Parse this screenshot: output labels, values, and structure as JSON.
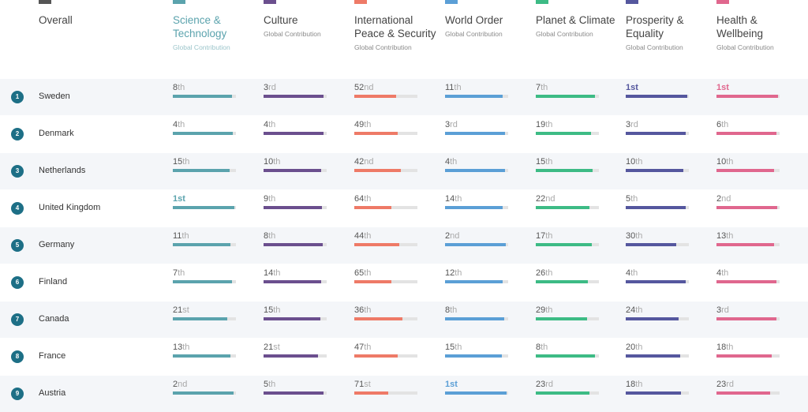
{
  "header": {
    "overall_label": "Overall",
    "overall_color": "#555555",
    "columns": [
      {
        "title_lines": [
          "Science &",
          "Technology"
        ],
        "subtitle": "Global Contribution",
        "color": "#5ba3ad",
        "title_color": "#5ba3ad"
      },
      {
        "title_lines": [
          "Culture"
        ],
        "subtitle": "Global Contribution",
        "color": "#6b4f8e"
      },
      {
        "title_lines": [
          "International",
          "Peace & Security"
        ],
        "subtitle": "Global Contribution",
        "color": "#ee7a67"
      },
      {
        "title_lines": [
          "World Order"
        ],
        "subtitle": "Global Contribution",
        "color": "#5b9fd6"
      },
      {
        "title_lines": [
          "Planet & Climate"
        ],
        "subtitle": "Global Contribution",
        "color": "#3dbb85"
      },
      {
        "title_lines": [
          "Prosperity &",
          "Equality"
        ],
        "subtitle": "Global Contribution",
        "color": "#55579e"
      },
      {
        "title_lines": [
          "Health &",
          "Wellbeing"
        ],
        "subtitle": "Global Contribution",
        "color": "#e0678e"
      }
    ]
  },
  "rows": [
    {
      "rank": "1",
      "country": "Sweden",
      "cells": [
        {
          "n": "8",
          "s": "th",
          "f": 0.96
        },
        {
          "n": "3",
          "s": "rd",
          "f": 0.98
        },
        {
          "n": "52",
          "s": "nd",
          "f": 0.68
        },
        {
          "n": "11",
          "s": "th",
          "f": 0.94
        },
        {
          "n": "7",
          "s": "th",
          "f": 0.96
        },
        {
          "n": "1",
          "s": "st",
          "f": 1.0,
          "first": true
        },
        {
          "n": "1",
          "s": "st",
          "f": 1.0,
          "first": true
        }
      ]
    },
    {
      "rank": "2",
      "country": "Denmark",
      "cells": [
        {
          "n": "4",
          "s": "th",
          "f": 0.98
        },
        {
          "n": "4",
          "s": "th",
          "f": 0.98
        },
        {
          "n": "49",
          "s": "th",
          "f": 0.7
        },
        {
          "n": "3",
          "s": "rd",
          "f": 0.98
        },
        {
          "n": "19",
          "s": "th",
          "f": 0.9
        },
        {
          "n": "3",
          "s": "rd",
          "f": 0.98
        },
        {
          "n": "6",
          "s": "th",
          "f": 0.97
        }
      ]
    },
    {
      "rank": "3",
      "country": "Netherlands",
      "cells": [
        {
          "n": "15",
          "s": "th",
          "f": 0.92
        },
        {
          "n": "10",
          "s": "th",
          "f": 0.94
        },
        {
          "n": "42",
          "s": "nd",
          "f": 0.75
        },
        {
          "n": "4",
          "s": "th",
          "f": 0.98
        },
        {
          "n": "15",
          "s": "th",
          "f": 0.92
        },
        {
          "n": "10",
          "s": "th",
          "f": 0.94
        },
        {
          "n": "10",
          "s": "th",
          "f": 0.94
        }
      ]
    },
    {
      "rank": "4",
      "country": "United Kingdom",
      "cells": [
        {
          "n": "1",
          "s": "st",
          "f": 1.0,
          "first": true
        },
        {
          "n": "9",
          "s": "th",
          "f": 0.95
        },
        {
          "n": "64",
          "s": "th",
          "f": 0.6
        },
        {
          "n": "14",
          "s": "th",
          "f": 0.93
        },
        {
          "n": "22",
          "s": "nd",
          "f": 0.87
        },
        {
          "n": "5",
          "s": "th",
          "f": 0.97
        },
        {
          "n": "2",
          "s": "nd",
          "f": 0.99
        }
      ]
    },
    {
      "rank": "5",
      "country": "Germany",
      "cells": [
        {
          "n": "11",
          "s": "th",
          "f": 0.94
        },
        {
          "n": "8",
          "s": "th",
          "f": 0.96
        },
        {
          "n": "44",
          "s": "th",
          "f": 0.73
        },
        {
          "n": "2",
          "s": "nd",
          "f": 0.99
        },
        {
          "n": "17",
          "s": "th",
          "f": 0.91
        },
        {
          "n": "30",
          "s": "th",
          "f": 0.82
        },
        {
          "n": "13",
          "s": "th",
          "f": 0.93
        }
      ]
    },
    {
      "rank": "6",
      "country": "Finland",
      "cells": [
        {
          "n": "7",
          "s": "th",
          "f": 0.96
        },
        {
          "n": "14",
          "s": "th",
          "f": 0.93
        },
        {
          "n": "65",
          "s": "th",
          "f": 0.6
        },
        {
          "n": "12",
          "s": "th",
          "f": 0.94
        },
        {
          "n": "26",
          "s": "th",
          "f": 0.85
        },
        {
          "n": "4",
          "s": "th",
          "f": 0.98
        },
        {
          "n": "4",
          "s": "th",
          "f": 0.98
        }
      ]
    },
    {
      "rank": "7",
      "country": "Canada",
      "cells": [
        {
          "n": "21",
          "s": "st",
          "f": 0.88
        },
        {
          "n": "15",
          "s": "th",
          "f": 0.92
        },
        {
          "n": "36",
          "s": "th",
          "f": 0.78
        },
        {
          "n": "8",
          "s": "th",
          "f": 0.96
        },
        {
          "n": "29",
          "s": "th",
          "f": 0.83
        },
        {
          "n": "24",
          "s": "th",
          "f": 0.86
        },
        {
          "n": "3",
          "s": "rd",
          "f": 0.98
        }
      ]
    },
    {
      "rank": "8",
      "country": "France",
      "cells": [
        {
          "n": "13",
          "s": "th",
          "f": 0.93
        },
        {
          "n": "21",
          "s": "st",
          "f": 0.88
        },
        {
          "n": "47",
          "s": "th",
          "f": 0.71
        },
        {
          "n": "15",
          "s": "th",
          "f": 0.92
        },
        {
          "n": "8",
          "s": "th",
          "f": 0.96
        },
        {
          "n": "20",
          "s": "th",
          "f": 0.88
        },
        {
          "n": "18",
          "s": "th",
          "f": 0.9
        }
      ]
    },
    {
      "rank": "9",
      "country": "Austria",
      "cells": [
        {
          "n": "2",
          "s": "nd",
          "f": 0.99
        },
        {
          "n": "5",
          "s": "th",
          "f": 0.97
        },
        {
          "n": "71",
          "s": "st",
          "f": 0.55
        },
        {
          "n": "1",
          "s": "st",
          "f": 1.0,
          "first": true
        },
        {
          "n": "23",
          "s": "rd",
          "f": 0.87
        },
        {
          "n": "18",
          "s": "th",
          "f": 0.9
        },
        {
          "n": "23",
          "s": "rd",
          "f": 0.87
        }
      ]
    }
  ]
}
